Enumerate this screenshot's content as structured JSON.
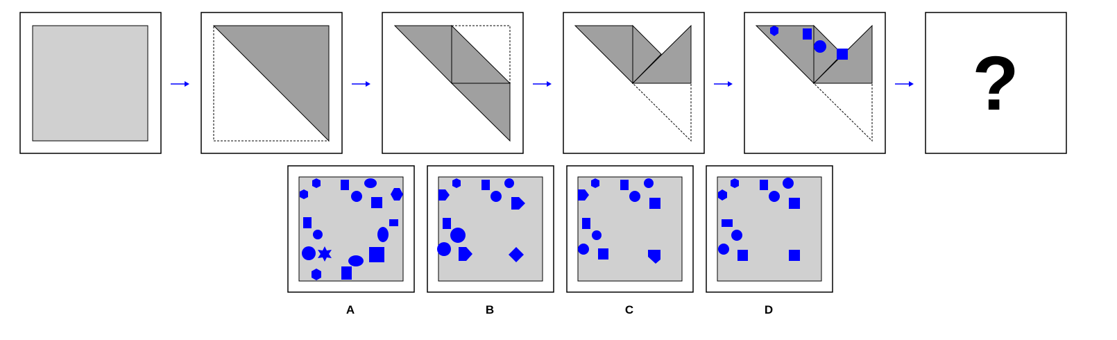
{
  "colors": {
    "paper": "#d0d0d0",
    "folded": "#a0a0a0",
    "hole": "#0000ff",
    "arrow": "#0000ff",
    "frame": "#000000",
    "background": "#ffffff"
  },
  "question_mark": "?",
  "options": [
    {
      "label": "A"
    },
    {
      "label": "B"
    },
    {
      "label": "C"
    },
    {
      "label": "D"
    }
  ]
}
